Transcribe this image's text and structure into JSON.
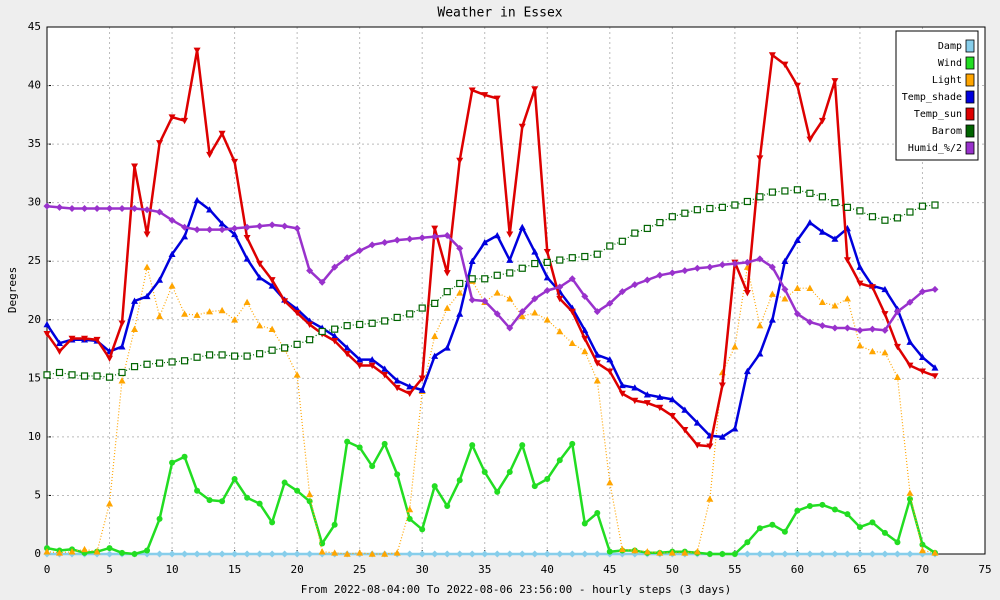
{
  "chart_data": {
    "type": "line",
    "title": "Weather in Essex",
    "y_label": "Degrees",
    "x_label": "From 2022-08-04:00 To 2022-08-06 23:56:00 - hourly steps (3 days)",
    "x": [
      0,
      1,
      2,
      3,
      4,
      5,
      6,
      7,
      8,
      9,
      10,
      11,
      12,
      13,
      14,
      15,
      16,
      17,
      18,
      19,
      20,
      21,
      22,
      23,
      24,
      25,
      26,
      27,
      28,
      29,
      30,
      31,
      32,
      33,
      34,
      35,
      36,
      37,
      38,
      39,
      40,
      41,
      42,
      43,
      44,
      45,
      46,
      47,
      48,
      49,
      50,
      51,
      52,
      53,
      54,
      55,
      56,
      57,
      58,
      59,
      60,
      61,
      62,
      63,
      64,
      65,
      66,
      67,
      68,
      69,
      70,
      71
    ],
    "xlim": [
      0,
      75
    ],
    "xticks": [
      0,
      5,
      10,
      15,
      20,
      25,
      30,
      35,
      40,
      45,
      50,
      55,
      60,
      65,
      70,
      75
    ],
    "ylim": [
      0,
      45
    ],
    "yticks": [
      0,
      5,
      10,
      15,
      20,
      25,
      30,
      35,
      40,
      45
    ],
    "grid": true,
    "legend": "top-right",
    "series": [
      {
        "name": "Damp",
        "color": "#87ceeb",
        "marker": "diamond",
        "dashed": false,
        "values": [
          0,
          0,
          0,
          0,
          0,
          0,
          0,
          0,
          0,
          0,
          0,
          0,
          0,
          0,
          0,
          0,
          0,
          0,
          0,
          0,
          0,
          0,
          0,
          0,
          0,
          0,
          0,
          0,
          0,
          0,
          0,
          0,
          0,
          0,
          0,
          0,
          0,
          0,
          0,
          0,
          0,
          0,
          0,
          0,
          0,
          0,
          0,
          0,
          0,
          0,
          0,
          0,
          0,
          0,
          0,
          0,
          0,
          0,
          0,
          0,
          0,
          0,
          0,
          0,
          0,
          0,
          0,
          0,
          0,
          0,
          0,
          0
        ]
      },
      {
        "name": "Wind",
        "color": "#22dd22",
        "marker": "circle",
        "dashed": false,
        "values": [
          0.5,
          0.3,
          0.4,
          0.1,
          0.2,
          0.5,
          0.1,
          0,
          0.3,
          3,
          7.8,
          8.3,
          5.4,
          4.6,
          4.5,
          6.4,
          4.8,
          4.3,
          2.7,
          6.1,
          5.4,
          4.5,
          0.9,
          2.5,
          9.6,
          9.1,
          7.5,
          9.4,
          6.8,
          3,
          2.1,
          5.8,
          4.1,
          6.3,
          9.3,
          7,
          5.3,
          7,
          9.3,
          5.8,
          6.4,
          8,
          9.4,
          2.6,
          3.5,
          0.2,
          0.3,
          0.3,
          0.1,
          0.1,
          0.2,
          0.2,
          0.1,
          0,
          0,
          0,
          1,
          2.2,
          2.5,
          1.9,
          3.7,
          4.1,
          4.2,
          3.8,
          3.4,
          2.3,
          2.7,
          1.8,
          1,
          4.7,
          0.8,
          0.1
        ]
      },
      {
        "name": "Light",
        "color": "#ffa500",
        "marker": "up",
        "dashed": true,
        "values": [
          0.2,
          0.1,
          0.2,
          0.4,
          0.2,
          4.3,
          14.8,
          19.2,
          24.5,
          20.3,
          22.9,
          20.5,
          20.4,
          20.7,
          20.8,
          20,
          21.5,
          19.5,
          19.2,
          17.5,
          15.3,
          5.1,
          0.2,
          0.1,
          0,
          0.1,
          0,
          0,
          0.1,
          3.8,
          13.9,
          18.6,
          21,
          22.3,
          23.3,
          21.5,
          22.3,
          21.8,
          20.3,
          20.6,
          20,
          19,
          18,
          17.3,
          14.8,
          6.1,
          0.4,
          0.3,
          0.2,
          0.1,
          0.1,
          0.1,
          0.2,
          4.7,
          15.5,
          17.7,
          24.5,
          19.5,
          22.2,
          21.8,
          22.7,
          22.7,
          21.5,
          21.2,
          21.8,
          17.8,
          17.3,
          17.2,
          15.1,
          5.2,
          0.3,
          0.1
        ]
      },
      {
        "name": "Temp_shade",
        "color": "#0000dd",
        "marker": "up",
        "dashed": false,
        "values": [
          19.6,
          18,
          18.3,
          18.3,
          18.2,
          17.3,
          17.7,
          21.6,
          22,
          23.4,
          25.6,
          27.1,
          30.2,
          29.4,
          28.2,
          27.3,
          25.2,
          23.6,
          22.9,
          21.7,
          20.9,
          19.9,
          19.3,
          18.6,
          17.6,
          16.6,
          16.6,
          15.8,
          14.8,
          14.3,
          14,
          16.9,
          17.6,
          20.5,
          25,
          26.6,
          27.2,
          25.1,
          27.9,
          25.8,
          23.6,
          22.4,
          21,
          19.1,
          17,
          16.6,
          14.4,
          14.2,
          13.6,
          13.4,
          13.2,
          12.3,
          11.2,
          10.1,
          10,
          10.7,
          15.6,
          17.1,
          20,
          25,
          26.8,
          28.3,
          27.5,
          26.9,
          27.8,
          24.5,
          22.9,
          22.6,
          20.9,
          18.1,
          16.8,
          15.9
        ]
      },
      {
        "name": "Temp_sun",
        "color": "#dd0000",
        "marker": "down",
        "dashed": false,
        "values": [
          18.8,
          17.3,
          18.4,
          18.4,
          18.3,
          16.7,
          19.7,
          33.1,
          27.3,
          35.1,
          37.3,
          37,
          43,
          34.1,
          35.9,
          33.5,
          27,
          24.8,
          23.4,
          21.6,
          20.6,
          19.6,
          18.8,
          18.2,
          17.1,
          16.1,
          16.1,
          15.3,
          14.2,
          13.7,
          15,
          27.8,
          24,
          33.6,
          39.6,
          39.2,
          38.9,
          27.3,
          36.5,
          39.7,
          25.8,
          21.8,
          20.7,
          18.4,
          16.3,
          15.6,
          13.7,
          13.1,
          12.9,
          12.5,
          11.8,
          10.6,
          9.3,
          9.2,
          14.4,
          24.9,
          22.3,
          33.8,
          42.6,
          41.8,
          40,
          35.4,
          37,
          40.4,
          25.1,
          23.1,
          22.8,
          20.5,
          17.7,
          16.1,
          15.6,
          15.2
        ]
      },
      {
        "name": "Barom",
        "color": "#006400",
        "marker": "square",
        "dashed": true,
        "values": [
          15.3,
          15.5,
          15.3,
          15.2,
          15.2,
          15.1,
          15.5,
          16,
          16.2,
          16.3,
          16.4,
          16.5,
          16.8,
          17,
          17,
          16.9,
          16.9,
          17.1,
          17.4,
          17.6,
          17.9,
          18.3,
          19,
          19.2,
          19.5,
          19.6,
          19.7,
          19.9,
          20.2,
          20.5,
          21,
          21.4,
          22.4,
          23.1,
          23.5,
          23.5,
          23.8,
          24,
          24.4,
          24.8,
          24.9,
          25.1,
          25.3,
          25.4,
          25.6,
          26.3,
          26.7,
          27.4,
          27.8,
          28.3,
          28.8,
          29.1,
          29.4,
          29.5,
          29.6,
          29.8,
          30.1,
          30.5,
          30.9,
          31,
          31.1,
          30.8,
          30.5,
          30,
          29.6,
          29.3,
          28.8,
          28.5,
          28.7,
          29.2,
          29.7,
          29.8
        ]
      },
      {
        "name": "Humid_%/2",
        "color": "#9932cc",
        "marker": "diamond",
        "dashed": false,
        "values": [
          29.7,
          29.6,
          29.5,
          29.5,
          29.5,
          29.5,
          29.5,
          29.5,
          29.4,
          29.2,
          28.5,
          27.9,
          27.7,
          27.7,
          27.7,
          27.8,
          27.9,
          28,
          28.1,
          28,
          27.8,
          24.2,
          23.2,
          24.5,
          25.3,
          25.9,
          26.4,
          26.6,
          26.8,
          26.9,
          27,
          27.1,
          27.2,
          26.1,
          21.7,
          21.6,
          20.5,
          19.3,
          20.7,
          21.8,
          22.5,
          22.8,
          23.5,
          22,
          20.7,
          21.4,
          22.4,
          23,
          23.4,
          23.8,
          24,
          24.2,
          24.4,
          24.5,
          24.7,
          24.8,
          24.9,
          25.2,
          24.5,
          22.6,
          20.5,
          19.8,
          19.5,
          19.3,
          19.3,
          19.1,
          19.2,
          19.1,
          20.7,
          21.5,
          22.4,
          22.6
        ]
      }
    ]
  }
}
